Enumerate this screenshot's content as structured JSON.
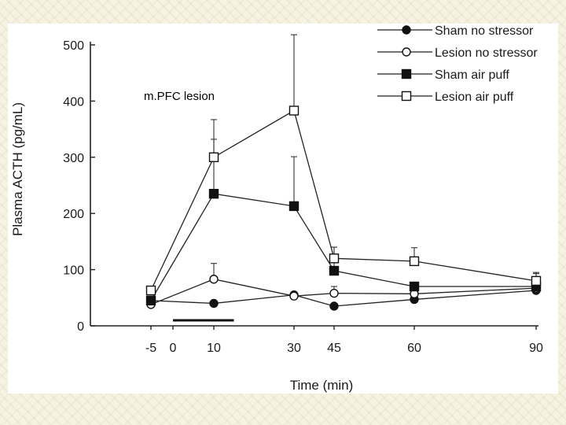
{
  "chart_data": {
    "type": "line",
    "title": "",
    "annotation": "m.PFC lesion",
    "xlabel": "Time (min)",
    "ylabel": "Plasma ACTH (pg/mL)",
    "xticks": [
      -5,
      0,
      10,
      30,
      45,
      60,
      90
    ],
    "xtick_labels": [
      "-5",
      "0",
      "10",
      "30",
      "45",
      "60",
      "90"
    ],
    "yticks": [
      0,
      100,
      200,
      300,
      400,
      500
    ],
    "ytick_labels": [
      "0",
      "100",
      "200",
      "300",
      "400",
      "500"
    ],
    "ylim": [
      0,
      500
    ],
    "stressor_bar": {
      "start": 0,
      "end": 15
    },
    "legend_position": "top-right",
    "series": [
      {
        "name": "Sham no stressor",
        "marker": "filled-circle",
        "x": [
          -5,
          10,
          30,
          45,
          60,
          90
        ],
        "y": [
          45,
          40,
          55,
          35,
          47,
          63
        ],
        "error": [
          null,
          null,
          null,
          null,
          null,
          null
        ]
      },
      {
        "name": "Lesion no stressor",
        "marker": "open-circle",
        "x": [
          -5,
          10,
          30,
          45,
          60,
          90
        ],
        "y": [
          38,
          83,
          53,
          58,
          57,
          67
        ],
        "error": [
          null,
          28,
          null,
          12,
          13,
          null
        ]
      },
      {
        "name": "Sham air puff",
        "marker": "filled-square",
        "x": [
          -5,
          10,
          30,
          45,
          60,
          90
        ],
        "y": [
          45,
          235,
          213,
          98,
          70,
          70
        ],
        "error": [
          null,
          97,
          88,
          42,
          null,
          25
        ]
      },
      {
        "name": "Lesion air puff",
        "marker": "open-square",
        "x": [
          -5,
          10,
          30,
          45,
          60,
          90
        ],
        "y": [
          63,
          300,
          383,
          120,
          115,
          80
        ],
        "error": [
          null,
          67,
          135,
          20,
          24,
          13
        ]
      }
    ]
  }
}
